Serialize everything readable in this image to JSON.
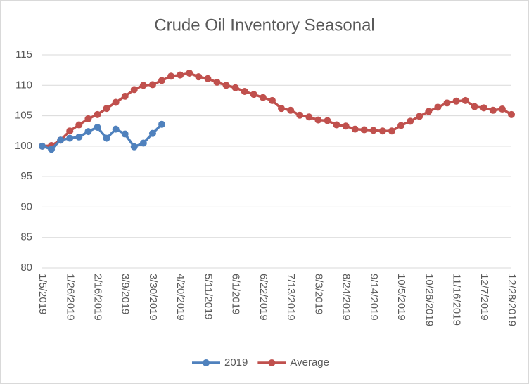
{
  "chart_data": {
    "type": "line",
    "title": "Crude Oil Inventory Seasonal",
    "categories": [
      "1/5/2019",
      null,
      null,
      "1/26/2019",
      null,
      null,
      "2/16/2019",
      null,
      null,
      "3/9/2019",
      null,
      null,
      "3/30/2019",
      null,
      null,
      "4/20/2019",
      null,
      null,
      "5/11/2019",
      null,
      null,
      "6/1/2019",
      null,
      null,
      "6/22/2019",
      null,
      null,
      "7/13/2019",
      null,
      null,
      "8/3/2019",
      null,
      null,
      "8/24/2019",
      null,
      null,
      "9/14/2019",
      null,
      null,
      "10/5/2019",
      null,
      null,
      "10/26/2019",
      null,
      null,
      "11/16/2019",
      null,
      null,
      "12/7/2019",
      null,
      null,
      "12/28/2019"
    ],
    "series": [
      {
        "name": "2019",
        "color": "#4f81bd",
        "values": [
          100,
          99.5,
          101,
          101.3,
          101.5,
          102.4,
          103.1,
          101.3,
          102.8,
          102,
          99.9,
          100.5,
          102.1,
          103.6,
          null,
          null,
          null,
          null,
          null,
          null,
          null,
          null,
          null,
          null,
          null,
          null,
          null,
          null,
          null,
          null,
          null,
          null,
          null,
          null,
          null,
          null,
          null,
          null,
          null,
          null,
          null,
          null,
          null,
          null,
          null,
          null,
          null,
          null,
          null,
          null,
          null,
          null
        ]
      },
      {
        "name": "Average",
        "color": "#c0504d",
        "values": [
          100,
          100.1,
          101,
          102.5,
          103.5,
          104.5,
          105.2,
          106.2,
          107.2,
          108.2,
          109.3,
          110,
          110.1,
          110.8,
          111.5,
          111.7,
          112,
          111.4,
          111.1,
          110.5,
          110,
          109.6,
          109,
          108.5,
          108,
          107.5,
          106.2,
          105.9,
          105.1,
          104.8,
          104.3,
          104.2,
          103.5,
          103.3,
          102.8,
          102.7,
          102.6,
          102.5,
          102.5,
          103.4,
          104.1,
          104.9,
          105.7,
          106.4,
          107.1,
          107.4,
          107.5,
          106.5,
          106.3,
          105.9,
          106.1,
          105.2
        ]
      }
    ],
    "ylim": [
      80,
      115
    ],
    "yticks": [
      80,
      85,
      90,
      95,
      100,
      105,
      110,
      115
    ],
    "grid": true,
    "legend": "bottom"
  }
}
